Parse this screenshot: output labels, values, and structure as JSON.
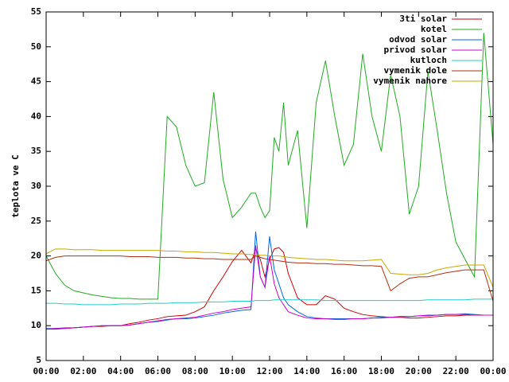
{
  "chart_data": {
    "type": "line",
    "y_label": "teplota ve C",
    "x": [
      0,
      0.5,
      1,
      1.5,
      2,
      2.5,
      3,
      3.5,
      4,
      4.5,
      5,
      5.5,
      6,
      6.5,
      7,
      7.5,
      8,
      8.5,
      9,
      9.5,
      10,
      10.5,
      11,
      11.25,
      11.5,
      11.75,
      12,
      12.25,
      12.5,
      12.75,
      13,
      13.5,
      14,
      14.5,
      15,
      15.5,
      16,
      16.5,
      17,
      17.5,
      18,
      18.5,
      19,
      19.5,
      20,
      20.5,
      21,
      21.5,
      22,
      22.5,
      23,
      23.5,
      24
    ],
    "xlim": [
      0,
      24
    ],
    "xticks": [
      {
        "value": 0,
        "label": "00:00"
      },
      {
        "value": 2,
        "label": "02:00"
      },
      {
        "value": 4,
        "label": "04:00"
      },
      {
        "value": 6,
        "label": "06:00"
      },
      {
        "value": 8,
        "label": "08:00"
      },
      {
        "value": 10,
        "label": "10:00"
      },
      {
        "value": 12,
        "label": "12:00"
      },
      {
        "value": 14,
        "label": "14:00"
      },
      {
        "value": 16,
        "label": "16:00"
      },
      {
        "value": 18,
        "label": "18:00"
      },
      {
        "value": 20,
        "label": "20:00"
      },
      {
        "value": 22,
        "label": "22:00"
      },
      {
        "value": 24,
        "label": "00:00"
      }
    ],
    "ylim": [
      5,
      55
    ],
    "yticks": [
      5,
      10,
      15,
      20,
      25,
      30,
      35,
      40,
      45,
      50,
      55
    ],
    "legend": "top-right",
    "series": [
      {
        "name": "3ti solar",
        "color": "#cc0000",
        "values": [
          9.5,
          9.5,
          9.6,
          9.7,
          9.8,
          9.9,
          9.9,
          10,
          10,
          10.3,
          10.5,
          10.8,
          11,
          11.3,
          11.4,
          11.5,
          12,
          12.7,
          15,
          17,
          19.2,
          20.8,
          19,
          21,
          19.5,
          17,
          19.5,
          21,
          21.2,
          20.5,
          17.5,
          14,
          13,
          13,
          14.3,
          13.8,
          12.5,
          12,
          11.6,
          11.4,
          11.3,
          11.2,
          11.2,
          11.1,
          11.1,
          11.2,
          11.3,
          11.4,
          11.4,
          11.5,
          11.5,
          11.5,
          11.5
        ]
      },
      {
        "name": "kotel",
        "color": "#22aa22",
        "values": [
          20,
          17.5,
          15.8,
          15,
          14.7,
          14.4,
          14.2,
          14,
          13.9,
          13.9,
          13.8,
          13.8,
          13.8,
          40,
          38.5,
          33,
          30,
          30.5,
          43.5,
          31,
          25.5,
          27,
          29,
          29,
          27,
          25.5,
          26.5,
          37,
          35,
          42,
          33,
          38,
          24,
          42,
          48,
          40,
          33,
          36,
          49,
          40,
          35,
          46,
          40,
          26,
          30,
          46.5,
          38,
          29,
          22,
          19.5,
          17,
          52,
          36
        ]
      },
      {
        "name": "odvod solar",
        "color": "#0066dd",
        "values": [
          9.6,
          9.6,
          9.7,
          9.7,
          9.8,
          9.9,
          10,
          10,
          10,
          10.1,
          10.3,
          10.5,
          10.6,
          10.8,
          11,
          11,
          11.1,
          11.3,
          11.5,
          11.8,
          12,
          12.2,
          12.3,
          23.5,
          17,
          15.5,
          22.8,
          18,
          16,
          14,
          13,
          12,
          11.3,
          11.1,
          11,
          11,
          11,
          11,
          11,
          11.1,
          11.2,
          11.2,
          11.3,
          11.3,
          11.4,
          11.4,
          11.5,
          11.6,
          11.6,
          11.7,
          11.6,
          11.5,
          11.5
        ]
      },
      {
        "name": "privod solar",
        "color": "#cc00cc",
        "values": [
          9.5,
          9.6,
          9.6,
          9.7,
          9.8,
          9.9,
          10,
          10,
          10,
          10.1,
          10.3,
          10.5,
          10.7,
          10.9,
          11,
          11.1,
          11.2,
          11.5,
          11.8,
          12,
          12.3,
          12.5,
          12.7,
          21.5,
          17,
          15.5,
          20,
          16,
          14,
          13,
          12,
          11.5,
          11.1,
          11,
          11,
          10.9,
          10.9,
          11,
          11,
          11.1,
          11.1,
          11.2,
          11.3,
          11.3,
          11.4,
          11.5,
          11.5,
          11.6,
          11.6,
          11.6,
          11.5,
          11.5,
          11.5
        ]
      },
      {
        "name": "kutloch",
        "color": "#22cccc",
        "values": [
          13.2,
          13.2,
          13.1,
          13.1,
          13,
          13,
          13,
          13,
          13.1,
          13.1,
          13.1,
          13.2,
          13.2,
          13.2,
          13.3,
          13.3,
          13.3,
          13.4,
          13.4,
          13.4,
          13.5,
          13.5,
          13.5,
          13.6,
          13.6,
          13.6,
          13.6,
          13.7,
          13.7,
          13.7,
          13.7,
          13.7,
          13.7,
          13.7,
          13.6,
          13.6,
          13.6,
          13.6,
          13.6,
          13.6,
          13.6,
          13.6,
          13.6,
          13.6,
          13.6,
          13.7,
          13.7,
          13.7,
          13.7,
          13.7,
          13.8,
          13.8,
          13.8
        ]
      },
      {
        "name": "vymenik dole",
        "color": "#b03010",
        "values": [
          19.3,
          19.8,
          20,
          20,
          20,
          20,
          20,
          20,
          20,
          19.9,
          19.9,
          19.9,
          19.8,
          19.8,
          19.8,
          19.7,
          19.7,
          19.6,
          19.6,
          19.5,
          19.5,
          19.5,
          19.5,
          20,
          19.8,
          19.6,
          19.5,
          19.4,
          19.3,
          19.2,
          19.1,
          19,
          19,
          18.9,
          18.9,
          18.8,
          18.8,
          18.7,
          18.6,
          18.6,
          18.5,
          15,
          16,
          16.8,
          17,
          17,
          17.3,
          17.6,
          17.8,
          18,
          18,
          18,
          13.5
        ]
      },
      {
        "name": "vymenik nahore",
        "color": "#c8a800",
        "values": [
          20.3,
          21,
          21,
          20.9,
          20.9,
          20.9,
          20.8,
          20.8,
          20.8,
          20.8,
          20.8,
          20.8,
          20.8,
          20.7,
          20.7,
          20.6,
          20.6,
          20.5,
          20.5,
          20.4,
          20.3,
          20.3,
          20.2,
          20.2,
          20.1,
          20.1,
          20,
          20,
          20,
          19.9,
          19.8,
          19.7,
          19.6,
          19.5,
          19.5,
          19.4,
          19.3,
          19.3,
          19.3,
          19.4,
          19.5,
          17.5,
          17.4,
          17.3,
          17.3,
          17.5,
          18,
          18.3,
          18.5,
          18.7,
          18.7,
          18.7,
          15.5
        ]
      }
    ]
  }
}
